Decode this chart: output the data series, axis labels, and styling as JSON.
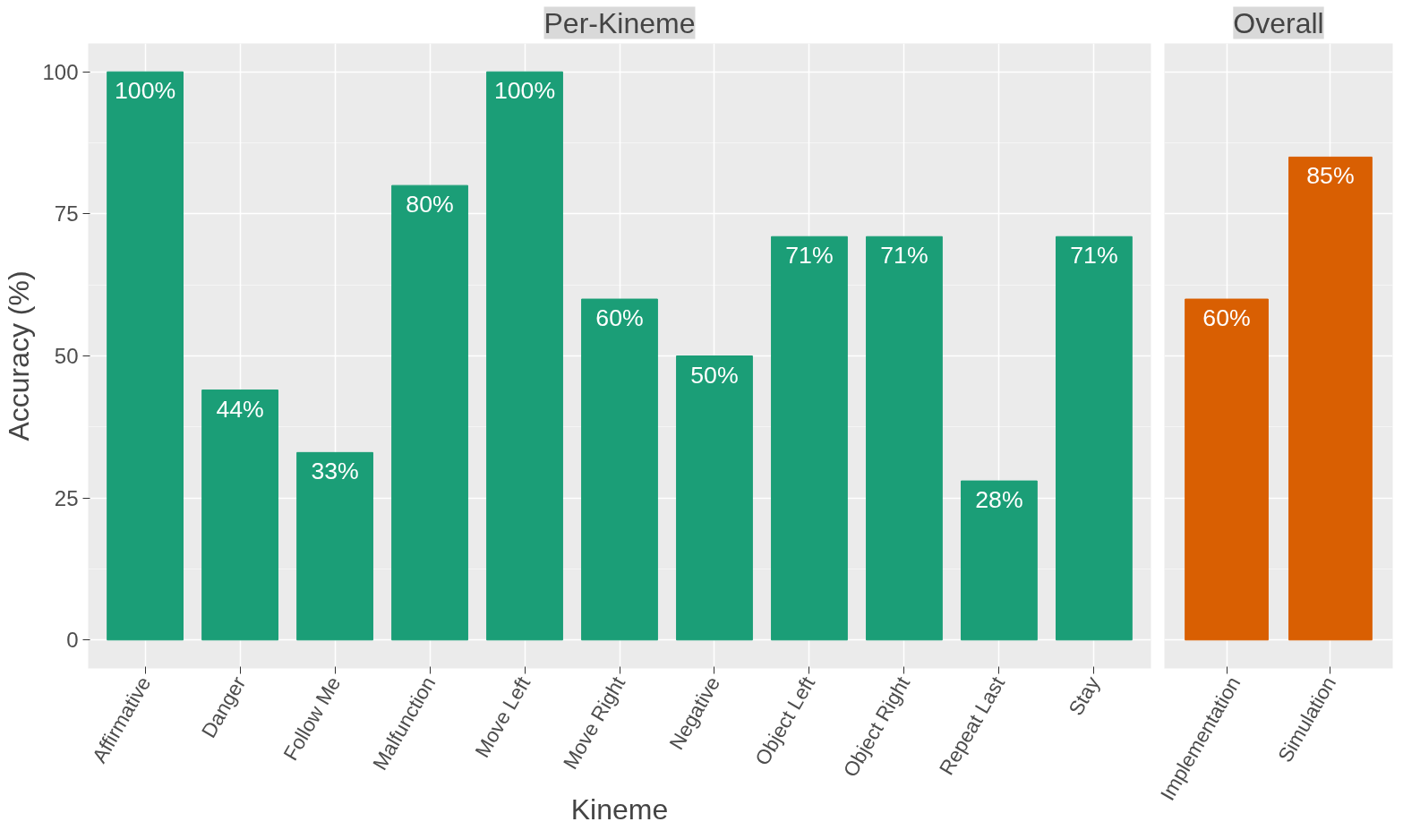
{
  "chart_data": [
    {
      "type": "bar",
      "title": "Per-Kineme",
      "xlabel": "Kineme",
      "ylabel": "Accuracy (%)",
      "categories": [
        "Affirmative",
        "Danger",
        "Follow Me",
        "Malfunction",
        "Move Left",
        "Move Right",
        "Negative",
        "Object Left",
        "Object Right",
        "Repeat Last",
        "Stay"
      ],
      "values": [
        100,
        44,
        33,
        80,
        100,
        60,
        50,
        71,
        71,
        28,
        71
      ],
      "value_labels": [
        "100%",
        "44%",
        "33%",
        "80%",
        "100%",
        "60%",
        "50%",
        "71%",
        "71%",
        "28%",
        "71%"
      ],
      "color": "#1b9e77",
      "ylim": [
        -5,
        105
      ],
      "yticks": [
        0,
        25,
        50,
        75,
        100
      ],
      "grid": true
    },
    {
      "type": "bar",
      "title": "Overall",
      "categories": [
        "Implementation",
        "Simulation"
      ],
      "values": [
        60,
        85
      ],
      "value_labels": [
        "60%",
        "85%"
      ],
      "color": "#d95f02",
      "ylim": [
        -5,
        105
      ],
      "yticks": [
        0,
        25,
        50,
        75,
        100
      ],
      "grid": true,
      "tick_labels": "x"
    }
  ]
}
